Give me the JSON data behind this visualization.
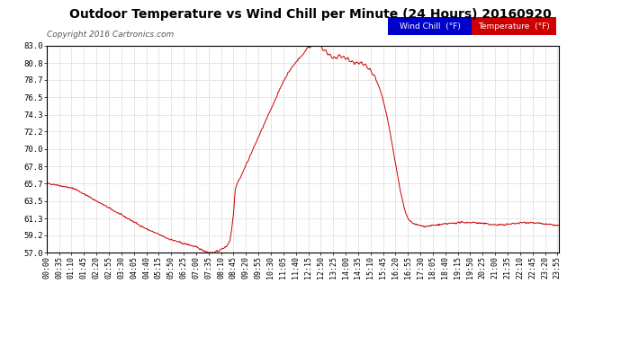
{
  "title": "Outdoor Temperature vs Wind Chill per Minute (24 Hours) 20160920",
  "copyright": "Copyright 2016 Cartronics.com",
  "title_fontsize": 11,
  "background_color": "#ffffff",
  "plot_bg_color": "#ffffff",
  "grid_color": "#bbbbbb",
  "line_color": "#cc0000",
  "ylim": [
    57.0,
    83.0
  ],
  "yticks": [
    57.0,
    59.2,
    61.3,
    63.5,
    65.7,
    67.8,
    70.0,
    72.2,
    74.3,
    76.5,
    78.7,
    80.8,
    83.0
  ],
  "legend_wind_chill_bg": "#0000cc",
  "legend_temp_bg": "#cc0000",
  "legend_text_color": "#ffffff",
  "num_minutes": 1440,
  "time_labels": [
    "00:00",
    "00:35",
    "01:10",
    "01:45",
    "02:20",
    "02:55",
    "03:30",
    "04:05",
    "04:40",
    "05:15",
    "05:50",
    "06:25",
    "07:00",
    "07:35",
    "08:10",
    "08:45",
    "09:20",
    "09:55",
    "10:30",
    "11:05",
    "11:40",
    "12:15",
    "12:50",
    "13:25",
    "14:00",
    "14:35",
    "15:10",
    "15:45",
    "16:20",
    "16:55",
    "17:30",
    "18:05",
    "18:40",
    "19:15",
    "19:50",
    "20:25",
    "21:00",
    "21:35",
    "22:10",
    "22:45",
    "23:20",
    "23:55"
  ],
  "tick_interval_minutes": 35,
  "control_points": [
    [
      0,
      65.7
    ],
    [
      20,
      65.6
    ],
    [
      40,
      65.4
    ],
    [
      60,
      65.2
    ],
    [
      80,
      65.0
    ],
    [
      100,
      64.5
    ],
    [
      120,
      64.0
    ],
    [
      140,
      63.5
    ],
    [
      160,
      63.0
    ],
    [
      180,
      62.5
    ],
    [
      200,
      62.0
    ],
    [
      220,
      61.5
    ],
    [
      240,
      61.0
    ],
    [
      260,
      60.5
    ],
    [
      280,
      60.0
    ],
    [
      300,
      59.6
    ],
    [
      320,
      59.2
    ],
    [
      340,
      58.8
    ],
    [
      360,
      58.5
    ],
    [
      380,
      58.2
    ],
    [
      400,
      58.0
    ],
    [
      420,
      57.7
    ],
    [
      440,
      57.3
    ],
    [
      455,
      57.05
    ],
    [
      465,
      57.0
    ],
    [
      475,
      57.1
    ],
    [
      490,
      57.4
    ],
    [
      505,
      57.8
    ],
    [
      515,
      58.5
    ],
    [
      520,
      60.0
    ],
    [
      525,
      62.0
    ],
    [
      530,
      65.0
    ],
    [
      535,
      65.7
    ],
    [
      545,
      66.5
    ],
    [
      555,
      67.5
    ],
    [
      565,
      68.5
    ],
    [
      575,
      69.5
    ],
    [
      585,
      70.5
    ],
    [
      595,
      71.5
    ],
    [
      605,
      72.5
    ],
    [
      615,
      73.5
    ],
    [
      625,
      74.5
    ],
    [
      635,
      75.5
    ],
    [
      645,
      76.5
    ],
    [
      655,
      77.5
    ],
    [
      665,
      78.5
    ],
    [
      675,
      79.3
    ],
    [
      685,
      80.0
    ],
    [
      695,
      80.6
    ],
    [
      705,
      81.2
    ],
    [
      715,
      81.6
    ],
    [
      720,
      81.9
    ],
    [
      725,
      82.2
    ],
    [
      730,
      82.5
    ],
    [
      735,
      82.7
    ],
    [
      740,
      82.9
    ],
    [
      745,
      83.0
    ],
    [
      750,
      83.2
    ],
    [
      755,
      83.3
    ],
    [
      760,
      83.2
    ],
    [
      765,
      83.0
    ],
    [
      770,
      82.8
    ],
    [
      775,
      82.6
    ],
    [
      780,
      82.4
    ],
    [
      785,
      82.2
    ],
    [
      790,
      82.0
    ],
    [
      795,
      81.8
    ],
    [
      800,
      81.6
    ],
    [
      805,
      81.5
    ],
    [
      810,
      81.4
    ],
    [
      815,
      81.5
    ],
    [
      820,
      81.6
    ],
    [
      825,
      81.7
    ],
    [
      830,
      81.6
    ],
    [
      835,
      81.5
    ],
    [
      840,
      81.4
    ],
    [
      845,
      81.3
    ],
    [
      850,
      81.2
    ],
    [
      855,
      81.0
    ],
    [
      860,
      80.9
    ],
    [
      865,
      80.8
    ],
    [
      870,
      80.8
    ],
    [
      875,
      80.8
    ],
    [
      880,
      80.8
    ],
    [
      885,
      80.7
    ],
    [
      890,
      80.6
    ],
    [
      895,
      80.5
    ],
    [
      900,
      80.3
    ],
    [
      905,
      80.1
    ],
    [
      910,
      79.8
    ],
    [
      915,
      79.5
    ],
    [
      920,
      79.2
    ],
    [
      925,
      78.8
    ],
    [
      930,
      78.3
    ],
    [
      935,
      77.7
    ],
    [
      940,
      77.0
    ],
    [
      945,
      76.2
    ],
    [
      950,
      75.3
    ],
    [
      955,
      74.3
    ],
    [
      960,
      73.2
    ],
    [
      965,
      72.0
    ],
    [
      970,
      70.8
    ],
    [
      975,
      69.5
    ],
    [
      980,
      68.2
    ],
    [
      985,
      67.0
    ],
    [
      990,
      65.7
    ],
    [
      995,
      64.5
    ],
    [
      1000,
      63.5
    ],
    [
      1005,
      62.5
    ],
    [
      1010,
      61.8
    ],
    [
      1015,
      61.3
    ],
    [
      1020,
      61.0
    ],
    [
      1025,
      60.8
    ],
    [
      1030,
      60.7
    ],
    [
      1035,
      60.6
    ],
    [
      1040,
      60.5
    ],
    [
      1060,
      60.3
    ],
    [
      1080,
      60.4
    ],
    [
      1100,
      60.5
    ],
    [
      1120,
      60.6
    ],
    [
      1140,
      60.7
    ],
    [
      1160,
      60.8
    ],
    [
      1180,
      60.8
    ],
    [
      1200,
      60.8
    ],
    [
      1220,
      60.7
    ],
    [
      1240,
      60.6
    ],
    [
      1260,
      60.5
    ],
    [
      1280,
      60.5
    ],
    [
      1300,
      60.6
    ],
    [
      1320,
      60.7
    ],
    [
      1340,
      60.8
    ],
    [
      1360,
      60.8
    ],
    [
      1380,
      60.7
    ],
    [
      1400,
      60.6
    ],
    [
      1420,
      60.5
    ],
    [
      1439,
      60.4
    ]
  ]
}
